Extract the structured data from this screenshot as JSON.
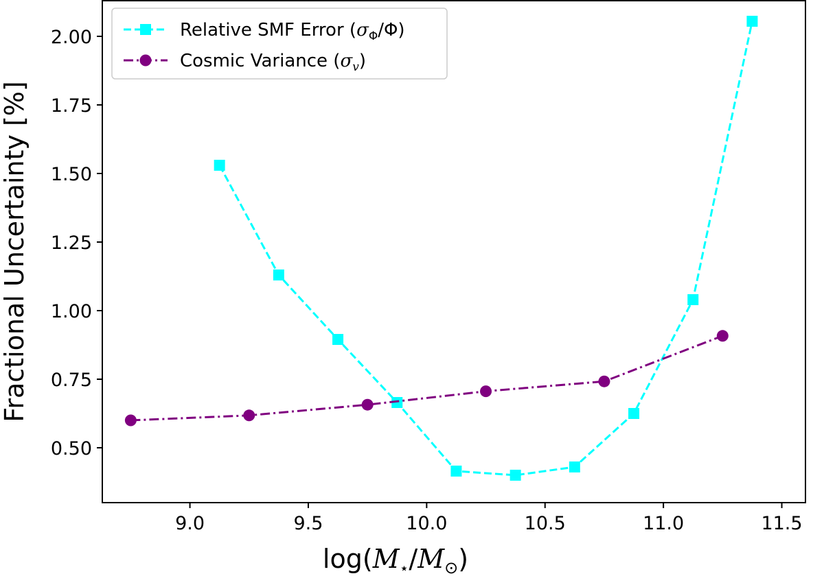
{
  "chart_data": {
    "type": "line",
    "xlabel": "log(M⋆/M⊙)",
    "ylabel": "Fractional Uncertainty [%]",
    "xlim": [
      8.63,
      11.6
    ],
    "ylim": [
      0.3,
      2.13
    ],
    "xticks": [
      9.0,
      9.5,
      10.0,
      10.5,
      11.0,
      11.5
    ],
    "xtick_labels": [
      "9.0",
      "9.5",
      "10.0",
      "10.5",
      "11.0",
      "11.5"
    ],
    "yticks": [
      0.5,
      0.75,
      1.0,
      1.25,
      1.5,
      1.75,
      2.0
    ],
    "ytick_labels": [
      "0.50",
      "0.75",
      "1.00",
      "1.25",
      "1.50",
      "1.75",
      "2.00"
    ],
    "grid": false,
    "legend_position": "top-left",
    "series": [
      {
        "name": "Relative SMF Error (σΦ/Φ)",
        "color": "#00FFFF",
        "line_style": "dashed",
        "marker": "square",
        "x": [
          9.125,
          9.375,
          9.625,
          9.875,
          10.125,
          10.375,
          10.625,
          10.875,
          11.125,
          11.375
        ],
        "y": [
          1.53,
          1.13,
          0.895,
          0.665,
          0.415,
          0.4,
          0.43,
          0.625,
          1.04,
          2.055
        ]
      },
      {
        "name": "Cosmic Variance (σv)",
        "color": "#800080",
        "line_style": "dashdot",
        "marker": "circle",
        "x": [
          8.75,
          9.25,
          9.75,
          10.25,
          10.75,
          11.25
        ],
        "y": [
          0.6,
          0.618,
          0.657,
          0.706,
          0.742,
          0.908
        ]
      }
    ]
  }
}
